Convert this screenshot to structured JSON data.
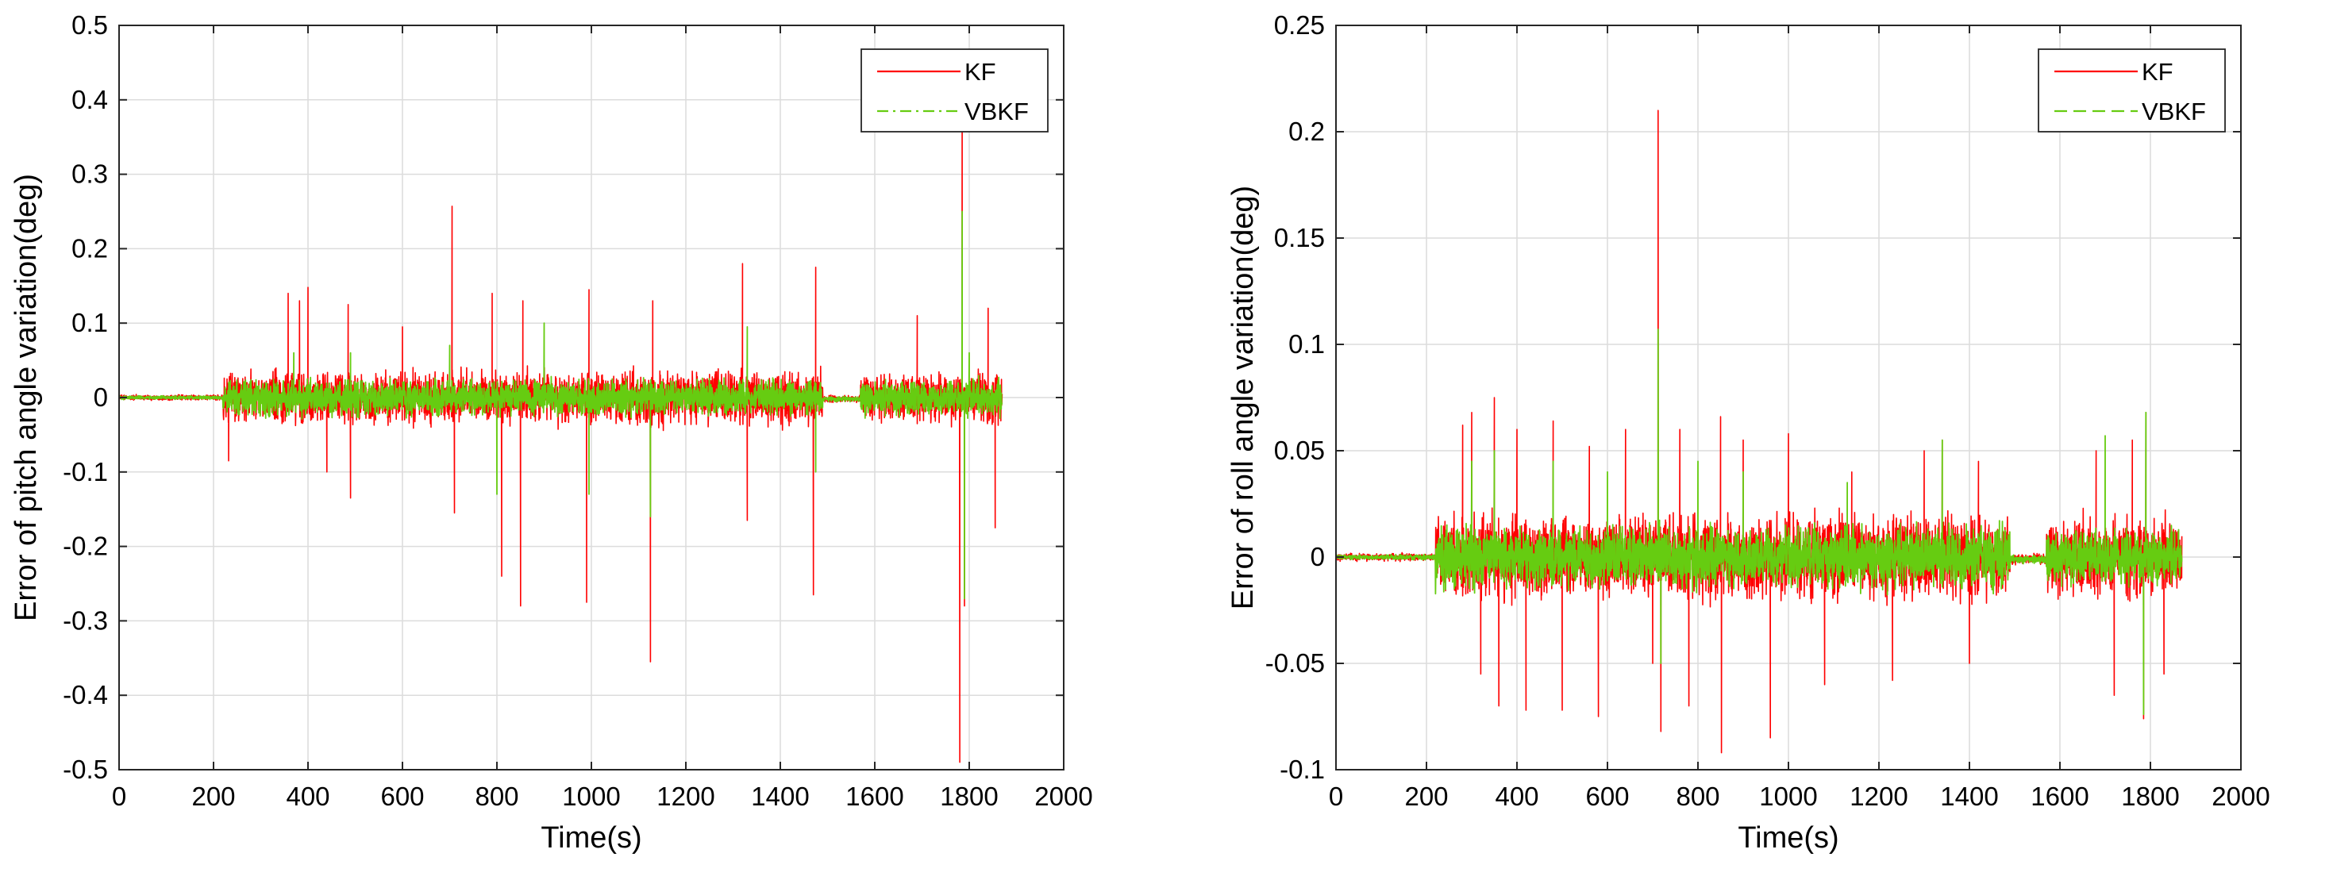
{
  "chart_data": [
    {
      "type": "line",
      "title": "",
      "xlabel": "Time(s)",
      "ylabel": "Error of pitch angle variation(deg)",
      "xlim": [
        0,
        2000
      ],
      "ylim": [
        -0.5,
        0.5
      ],
      "xticks": [
        0,
        200,
        400,
        600,
        800,
        1000,
        1200,
        1400,
        1600,
        1800,
        2000
      ],
      "yticks": [
        -0.5,
        -0.4,
        -0.3,
        -0.2,
        -0.1,
        0,
        0.1,
        0.2,
        0.3,
        0.4,
        0.5
      ],
      "xtick_labels": [
        "0",
        "200",
        "400",
        "600",
        "800",
        "1000",
        "1200",
        "1400",
        "1600",
        "1800",
        "2000"
      ],
      "ytick_labels": [
        "-0.5",
        "-0.4",
        "-0.3",
        "-0.2",
        "-0.1",
        "0",
        "0.1",
        "0.2",
        "0.3",
        "0.4",
        "0.5"
      ],
      "grid": true,
      "legend_position": "top-right",
      "series": [
        {
          "name": "KF",
          "color": "#ff0000",
          "style": "solid",
          "segments": [
            [
              0,
              220,
              0.003,
              0
            ],
            [
              220,
              1490,
              0.03,
              0
            ],
            [
              1490,
              1570,
              0.004,
              -0.002
            ],
            [
              1570,
              1870,
              0.028,
              0
            ]
          ],
          "spikes": [
            [
              232,
              -0.085
            ],
            [
              358,
              0.14
            ],
            [
              382,
              0.13
            ],
            [
              400,
              0.148
            ],
            [
              440,
              -0.1
            ],
            [
              485,
              0.125
            ],
            [
              490,
              -0.135
            ],
            [
              600,
              0.095
            ],
            [
              705,
              0.257
            ],
            [
              710,
              -0.155
            ],
            [
              790,
              0.14
            ],
            [
              810,
              -0.24
            ],
            [
              850,
              -0.28
            ],
            [
              855,
              0.13
            ],
            [
              990,
              -0.275
            ],
            [
              995,
              0.145
            ],
            [
              1125,
              -0.355
            ],
            [
              1130,
              0.13
            ],
            [
              1320,
              0.18
            ],
            [
              1330,
              -0.165
            ],
            [
              1470,
              -0.265
            ],
            [
              1475,
              0.175
            ],
            [
              1690,
              0.11
            ],
            [
              1780,
              -0.49
            ],
            [
              1785,
              0.43
            ],
            [
              1790,
              -0.28
            ],
            [
              1840,
              0.12
            ],
            [
              1855,
              -0.175
            ]
          ]
        },
        {
          "name": "VBKF",
          "color": "#66cc11",
          "style": "dash-dot",
          "segments": [
            [
              0,
              220,
              0.002,
              0
            ],
            [
              220,
              1490,
              0.02,
              0
            ],
            [
              1490,
              1570,
              0.003,
              -0.002
            ],
            [
              1570,
              1870,
              0.02,
              0
            ]
          ],
          "spikes": [
            [
              370,
              0.06
            ],
            [
              490,
              0.06
            ],
            [
              700,
              0.07
            ],
            [
              800,
              -0.13
            ],
            [
              900,
              0.1
            ],
            [
              995,
              -0.13
            ],
            [
              1125,
              -0.16
            ],
            [
              1330,
              0.095
            ],
            [
              1475,
              -0.1
            ],
            [
              1785,
              0.25
            ],
            [
              1790,
              -0.27
            ],
            [
              1800,
              0.06
            ]
          ]
        }
      ]
    },
    {
      "type": "line",
      "title": "",
      "xlabel": "Time(s)",
      "ylabel": "Error of roll angle variation(deg)",
      "xlim": [
        0,
        2000
      ],
      "ylim": [
        -0.1,
        0.25
      ],
      "xticks": [
        0,
        200,
        400,
        600,
        800,
        1000,
        1200,
        1400,
        1600,
        1800,
        2000
      ],
      "yticks": [
        -0.1,
        -0.05,
        0,
        0.05,
        0.1,
        0.15,
        0.2,
        0.25
      ],
      "xtick_labels": [
        "0",
        "200",
        "400",
        "600",
        "800",
        "1000",
        "1200",
        "1400",
        "1600",
        "1800",
        "2000"
      ],
      "ytick_labels": [
        "-0.1",
        "-0.05",
        "0",
        "0.05",
        "0.1",
        "0.15",
        "0.2",
        "0.25"
      ],
      "grid": true,
      "legend_position": "top-right",
      "series": [
        {
          "name": "KF",
          "color": "#ff0000",
          "style": "solid",
          "segments": [
            [
              0,
              220,
              0.0015,
              0
            ],
            [
              220,
              1490,
              0.016,
              0
            ],
            [
              1490,
              1570,
              0.002,
              -0.001
            ],
            [
              1570,
              1870,
              0.015,
              0
            ]
          ],
          "spikes": [
            [
              280,
              0.062
            ],
            [
              300,
              0.068
            ],
            [
              320,
              -0.055
            ],
            [
              350,
              0.075
            ],
            [
              360,
              -0.07
            ],
            [
              400,
              0.06
            ],
            [
              420,
              -0.072
            ],
            [
              480,
              0.064
            ],
            [
              500,
              -0.072
            ],
            [
              560,
              0.052
            ],
            [
              580,
              -0.075
            ],
            [
              640,
              0.06
            ],
            [
              700,
              -0.05
            ],
            [
              712,
              0.21
            ],
            [
              718,
              -0.082
            ],
            [
              760,
              0.06
            ],
            [
              780,
              -0.07
            ],
            [
              850,
              0.066
            ],
            [
              852,
              -0.092
            ],
            [
              900,
              0.055
            ],
            [
              960,
              -0.085
            ],
            [
              1000,
              0.058
            ],
            [
              1080,
              -0.06
            ],
            [
              1140,
              0.04
            ],
            [
              1230,
              -0.058
            ],
            [
              1300,
              0.05
            ],
            [
              1340,
              0.055
            ],
            [
              1400,
              -0.05
            ],
            [
              1420,
              0.045
            ],
            [
              1680,
              0.05
            ],
            [
              1720,
              -0.065
            ],
            [
              1760,
              0.055
            ],
            [
              1785,
              -0.076
            ],
            [
              1790,
              0.068
            ],
            [
              1830,
              -0.055
            ]
          ]
        },
        {
          "name": "VBKF",
          "color": "#66cc11",
          "style": "dashed",
          "segments": [
            [
              0,
              220,
              0.001,
              0
            ],
            [
              220,
              1490,
              0.012,
              0
            ],
            [
              1490,
              1570,
              0.0015,
              -0.001
            ],
            [
              1570,
              1870,
              0.011,
              0
            ]
          ],
          "spikes": [
            [
              300,
              0.045
            ],
            [
              350,
              0.05
            ],
            [
              480,
              0.045
            ],
            [
              600,
              0.04
            ],
            [
              712,
              0.107
            ],
            [
              718,
              -0.05
            ],
            [
              800,
              0.045
            ],
            [
              900,
              0.04
            ],
            [
              1130,
              0.035
            ],
            [
              1340,
              0.055
            ],
            [
              1700,
              0.057
            ],
            [
              1785,
              -0.074
            ],
            [
              1790,
              0.068
            ]
          ]
        }
      ]
    }
  ]
}
